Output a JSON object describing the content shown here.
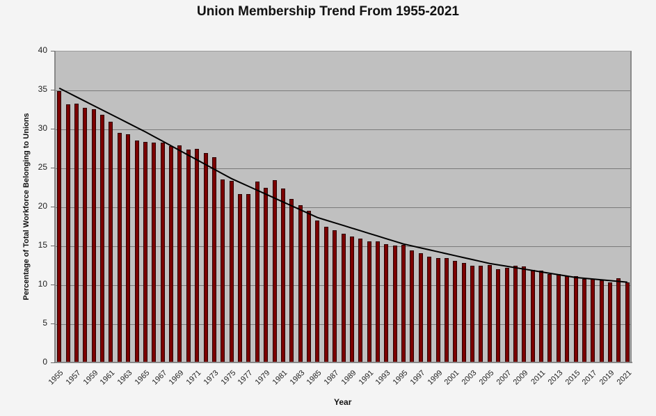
{
  "chart_data": {
    "type": "bar",
    "title": "Union Membership Trend From 1955-2021",
    "xlabel": "Year",
    "ylabel": "Percentage of Total Workforce Belonging to Unions",
    "ylim": [
      0,
      40
    ],
    "yticks": [
      0,
      5,
      10,
      15,
      20,
      25,
      30,
      35,
      40
    ],
    "grid": true,
    "legend": null,
    "categories": [
      "1955",
      "1956",
      "1957",
      "1958",
      "1959",
      "1960",
      "1961",
      "1962",
      "1963",
      "1964",
      "1965",
      "1966",
      "1967",
      "1968",
      "1969",
      "1970",
      "1971",
      "1972",
      "1973",
      "1974",
      "1975",
      "1976",
      "1977",
      "1978",
      "1979",
      "1980",
      "1981",
      "1982",
      "1983",
      "1984",
      "1985",
      "1986",
      "1987",
      "1988",
      "1989",
      "1990",
      "1991",
      "1992",
      "1993",
      "1994",
      "1995",
      "1996",
      "1997",
      "1998",
      "1999",
      "2000",
      "2001",
      "2002",
      "2003",
      "2004",
      "2005",
      "2006",
      "2007",
      "2008",
      "2009",
      "2010",
      "2011",
      "2012",
      "2013",
      "2014",
      "2015",
      "2016",
      "2017",
      "2018",
      "2019",
      "2020",
      "2021"
    ],
    "xtick_labels": [
      "1955",
      "1957",
      "1959",
      "1961",
      "1963",
      "1965",
      "1967",
      "1969",
      "1971",
      "1973",
      "1975",
      "1977",
      "1979",
      "1981",
      "1983",
      "1985",
      "1987",
      "1989",
      "1991",
      "1993",
      "1995",
      "1997",
      "1999",
      "2001",
      "2003",
      "2005",
      "2007",
      "2009",
      "2011",
      "2013",
      "2015",
      "2017",
      "2019",
      "2021"
    ],
    "series": [
      {
        "name": "Union membership %",
        "color": "#7b0000",
        "values": [
          34.8,
          33.1,
          33.2,
          32.7,
          32.5,
          31.8,
          30.9,
          29.5,
          29.3,
          28.5,
          28.3,
          28.2,
          28.2,
          27.8,
          27.9,
          27.3,
          27.4,
          26.9,
          26.3,
          23.5,
          23.3,
          21.6,
          21.6,
          23.2,
          22.4,
          23.4,
          22.3,
          21.0,
          20.2,
          19.5,
          18.2,
          17.4,
          17.0,
          16.5,
          16.2,
          15.9,
          15.5,
          15.5,
          15.2,
          15.0,
          15.1,
          14.4,
          14.0,
          13.6,
          13.4,
          13.4,
          13.0,
          12.8,
          12.4,
          12.4,
          12.5,
          12.0,
          12.1,
          12.4,
          12.3,
          11.9,
          11.8,
          11.3,
          11.3,
          11.1,
          11.1,
          10.7,
          10.7,
          10.5,
          10.3,
          10.8,
          10.3
        ]
      },
      {
        "name": "Trend line",
        "type": "line",
        "color": "#000000",
        "values_approx": {
          "1955": 35.2,
          "1965": 29.6,
          "1975": 23.6,
          "1985": 18.6,
          "1995": 15.2,
          "2005": 12.7,
          "2015": 10.9,
          "2021": 10.3
        }
      }
    ]
  }
}
